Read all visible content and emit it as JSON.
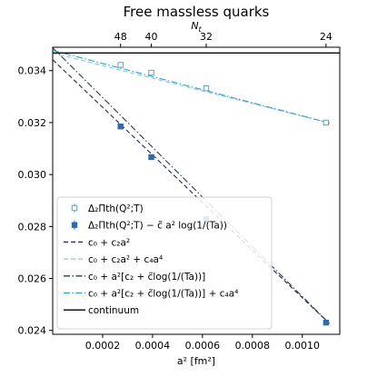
{
  "chart_data": {
    "type": "line",
    "title": "Free massless quarks",
    "xlabel": "a² [fm²]",
    "top_xlabel": "N_t",
    "top_xlabel_main": "N",
    "top_xlabel_sub": "t",
    "ylabel": "",
    "xlim": [
      0,
      0.00115
    ],
    "ylim": [
      0.02385,
      0.0349
    ],
    "grid": false,
    "legend_position": "center-left",
    "x_ticks": [
      {
        "value": 0.0002,
        "label": "0.0002"
      },
      {
        "value": 0.0004,
        "label": "0.0004"
      },
      {
        "value": 0.0006,
        "label": "0.0006"
      },
      {
        "value": 0.0008,
        "label": "0.0008"
      },
      {
        "value": 0.001,
        "label": "0.0010"
      }
    ],
    "y_ticks": [
      {
        "value": 0.024,
        "label": "0.024"
      },
      {
        "value": 0.026,
        "label": "0.026"
      },
      {
        "value": 0.028,
        "label": "0.028"
      },
      {
        "value": 0.03,
        "label": "0.030"
      },
      {
        "value": 0.032,
        "label": "0.032"
      },
      {
        "value": 0.034,
        "label": "0.034"
      }
    ],
    "top_ticks": [
      {
        "value": 0.000272,
        "label": "48"
      },
      {
        "value": 0.000395,
        "label": "40"
      },
      {
        "value": 0.000615,
        "label": "32"
      },
      {
        "value": 0.001095,
        "label": "24"
      }
    ],
    "series": [
      {
        "name": "Δ₂Πth(Q²;T)",
        "kind": "markers",
        "marker": "open-square",
        "color": "#5aa0d6",
        "x": [
          0.000272,
          0.000395,
          0.000615,
          0.001095
        ],
        "y": [
          0.03422,
          0.03392,
          0.03332,
          0.032
        ]
      },
      {
        "name": "Δ₂Πth(Q²;T) − c̃ a² log(1/(Ta))",
        "kind": "markers",
        "marker": "filled-square",
        "color": "#2b6cb0",
        "x": [
          0.000272,
          0.000395,
          0.000615,
          0.001095
        ],
        "y": [
          0.03185,
          0.03067,
          0.02828,
          0.0243
        ]
      },
      {
        "name": "c₀ + c₂a²",
        "kind": "line",
        "style": "dashed",
        "color": "#1a237e",
        "x": [
          0,
          0.00111
        ],
        "y": [
          0.03442,
          0.02425
        ]
      },
      {
        "name": "c₀ + c₂a² + c₄a⁴",
        "kind": "line",
        "style": "dashed",
        "color": "#8ec5ea",
        "x": [
          0,
          0.00111
        ],
        "y": [
          0.03468,
          0.03198
        ]
      },
      {
        "name": "c₀ + a²[c₂ + c̃log(1/(Ta))]",
        "kind": "line",
        "style": "dashdot",
        "color": "#2c3e50",
        "x": [
          0,
          0.00111
        ],
        "y": [
          0.03488,
          0.02425
        ]
      },
      {
        "name": "c₀ + a²[c₂ + c̃log(1/(Ta))] + c₄a⁴",
        "kind": "line",
        "style": "dashdot",
        "color": "#29a3d6",
        "x": [
          0,
          0.00111
        ],
        "y": [
          0.03478,
          0.03198
        ]
      },
      {
        "name": "continuum",
        "kind": "line",
        "style": "solid",
        "color": "#000000",
        "x": [
          0,
          0.00115
        ],
        "y": [
          0.03468,
          0.03468
        ]
      }
    ]
  }
}
